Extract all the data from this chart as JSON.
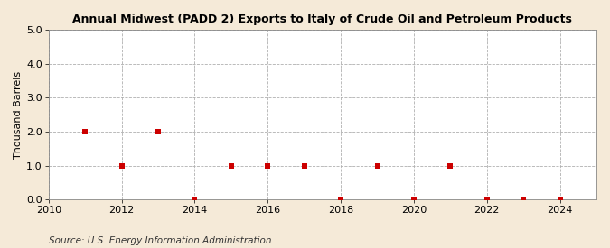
{
  "title": "Annual Midwest (PADD 2) Exports to Italy of Crude Oil and Petroleum Products",
  "ylabel": "Thousand Barrels",
  "source": "Source: U.S. Energy Information Administration",
  "background_color": "#f5ead8",
  "plot_background_color": "#ffffff",
  "xmin": 2010,
  "xmax": 2025,
  "ymin": 0.0,
  "ymax": 5.0,
  "yticks": [
    0.0,
    1.0,
    2.0,
    3.0,
    4.0,
    5.0
  ],
  "xticks": [
    2010,
    2012,
    2014,
    2016,
    2018,
    2020,
    2022,
    2024
  ],
  "data_x": [
    2011,
    2012,
    2013,
    2014,
    2015,
    2016,
    2017,
    2018,
    2019,
    2020,
    2021,
    2022,
    2023,
    2024
  ],
  "data_y": [
    2.0,
    1.0,
    2.0,
    0.0,
    1.0,
    1.0,
    1.0,
    0.0,
    1.0,
    0.0,
    1.0,
    0.0,
    0.0,
    0.0
  ],
  "marker_color": "#cc0000",
  "marker_style": "s",
  "marker_size": 4,
  "grid_color": "#b0b0b0",
  "grid_linestyle": "--",
  "title_fontsize": 9,
  "label_fontsize": 8,
  "tick_fontsize": 8,
  "source_fontsize": 7.5
}
